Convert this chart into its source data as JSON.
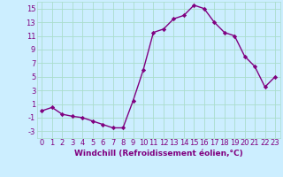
{
  "x": [
    0,
    1,
    2,
    3,
    4,
    5,
    6,
    7,
    8,
    9,
    10,
    11,
    12,
    13,
    14,
    15,
    16,
    17,
    18,
    19,
    20,
    21,
    22,
    23
  ],
  "y": [
    0.0,
    0.5,
    -0.5,
    -0.8,
    -1.0,
    -1.5,
    -2.0,
    -2.5,
    -2.5,
    1.5,
    6.0,
    11.5,
    12.0,
    13.5,
    14.0,
    15.5,
    15.0,
    13.0,
    11.5,
    11.0,
    8.0,
    6.5,
    3.5,
    5.0
  ],
  "line_color": "#800080",
  "marker": "D",
  "marker_size": 2.2,
  "bg_color": "#cceeff",
  "grid_color": "#aaddcc",
  "title": "",
  "xlabel": "Windchill (Refroidissement éolien,°C)",
  "ylabel": "",
  "xlim": [
    -0.5,
    23.5
  ],
  "ylim": [
    -4,
    16
  ],
  "yticks": [
    -3,
    -1,
    1,
    3,
    5,
    7,
    9,
    11,
    13,
    15
  ],
  "xticks": [
    0,
    1,
    2,
    3,
    4,
    5,
    6,
    7,
    8,
    9,
    10,
    11,
    12,
    13,
    14,
    15,
    16,
    17,
    18,
    19,
    20,
    21,
    22,
    23
  ],
  "tick_fontsize": 6.0,
  "xlabel_fontsize": 6.5,
  "line_width": 1.0
}
